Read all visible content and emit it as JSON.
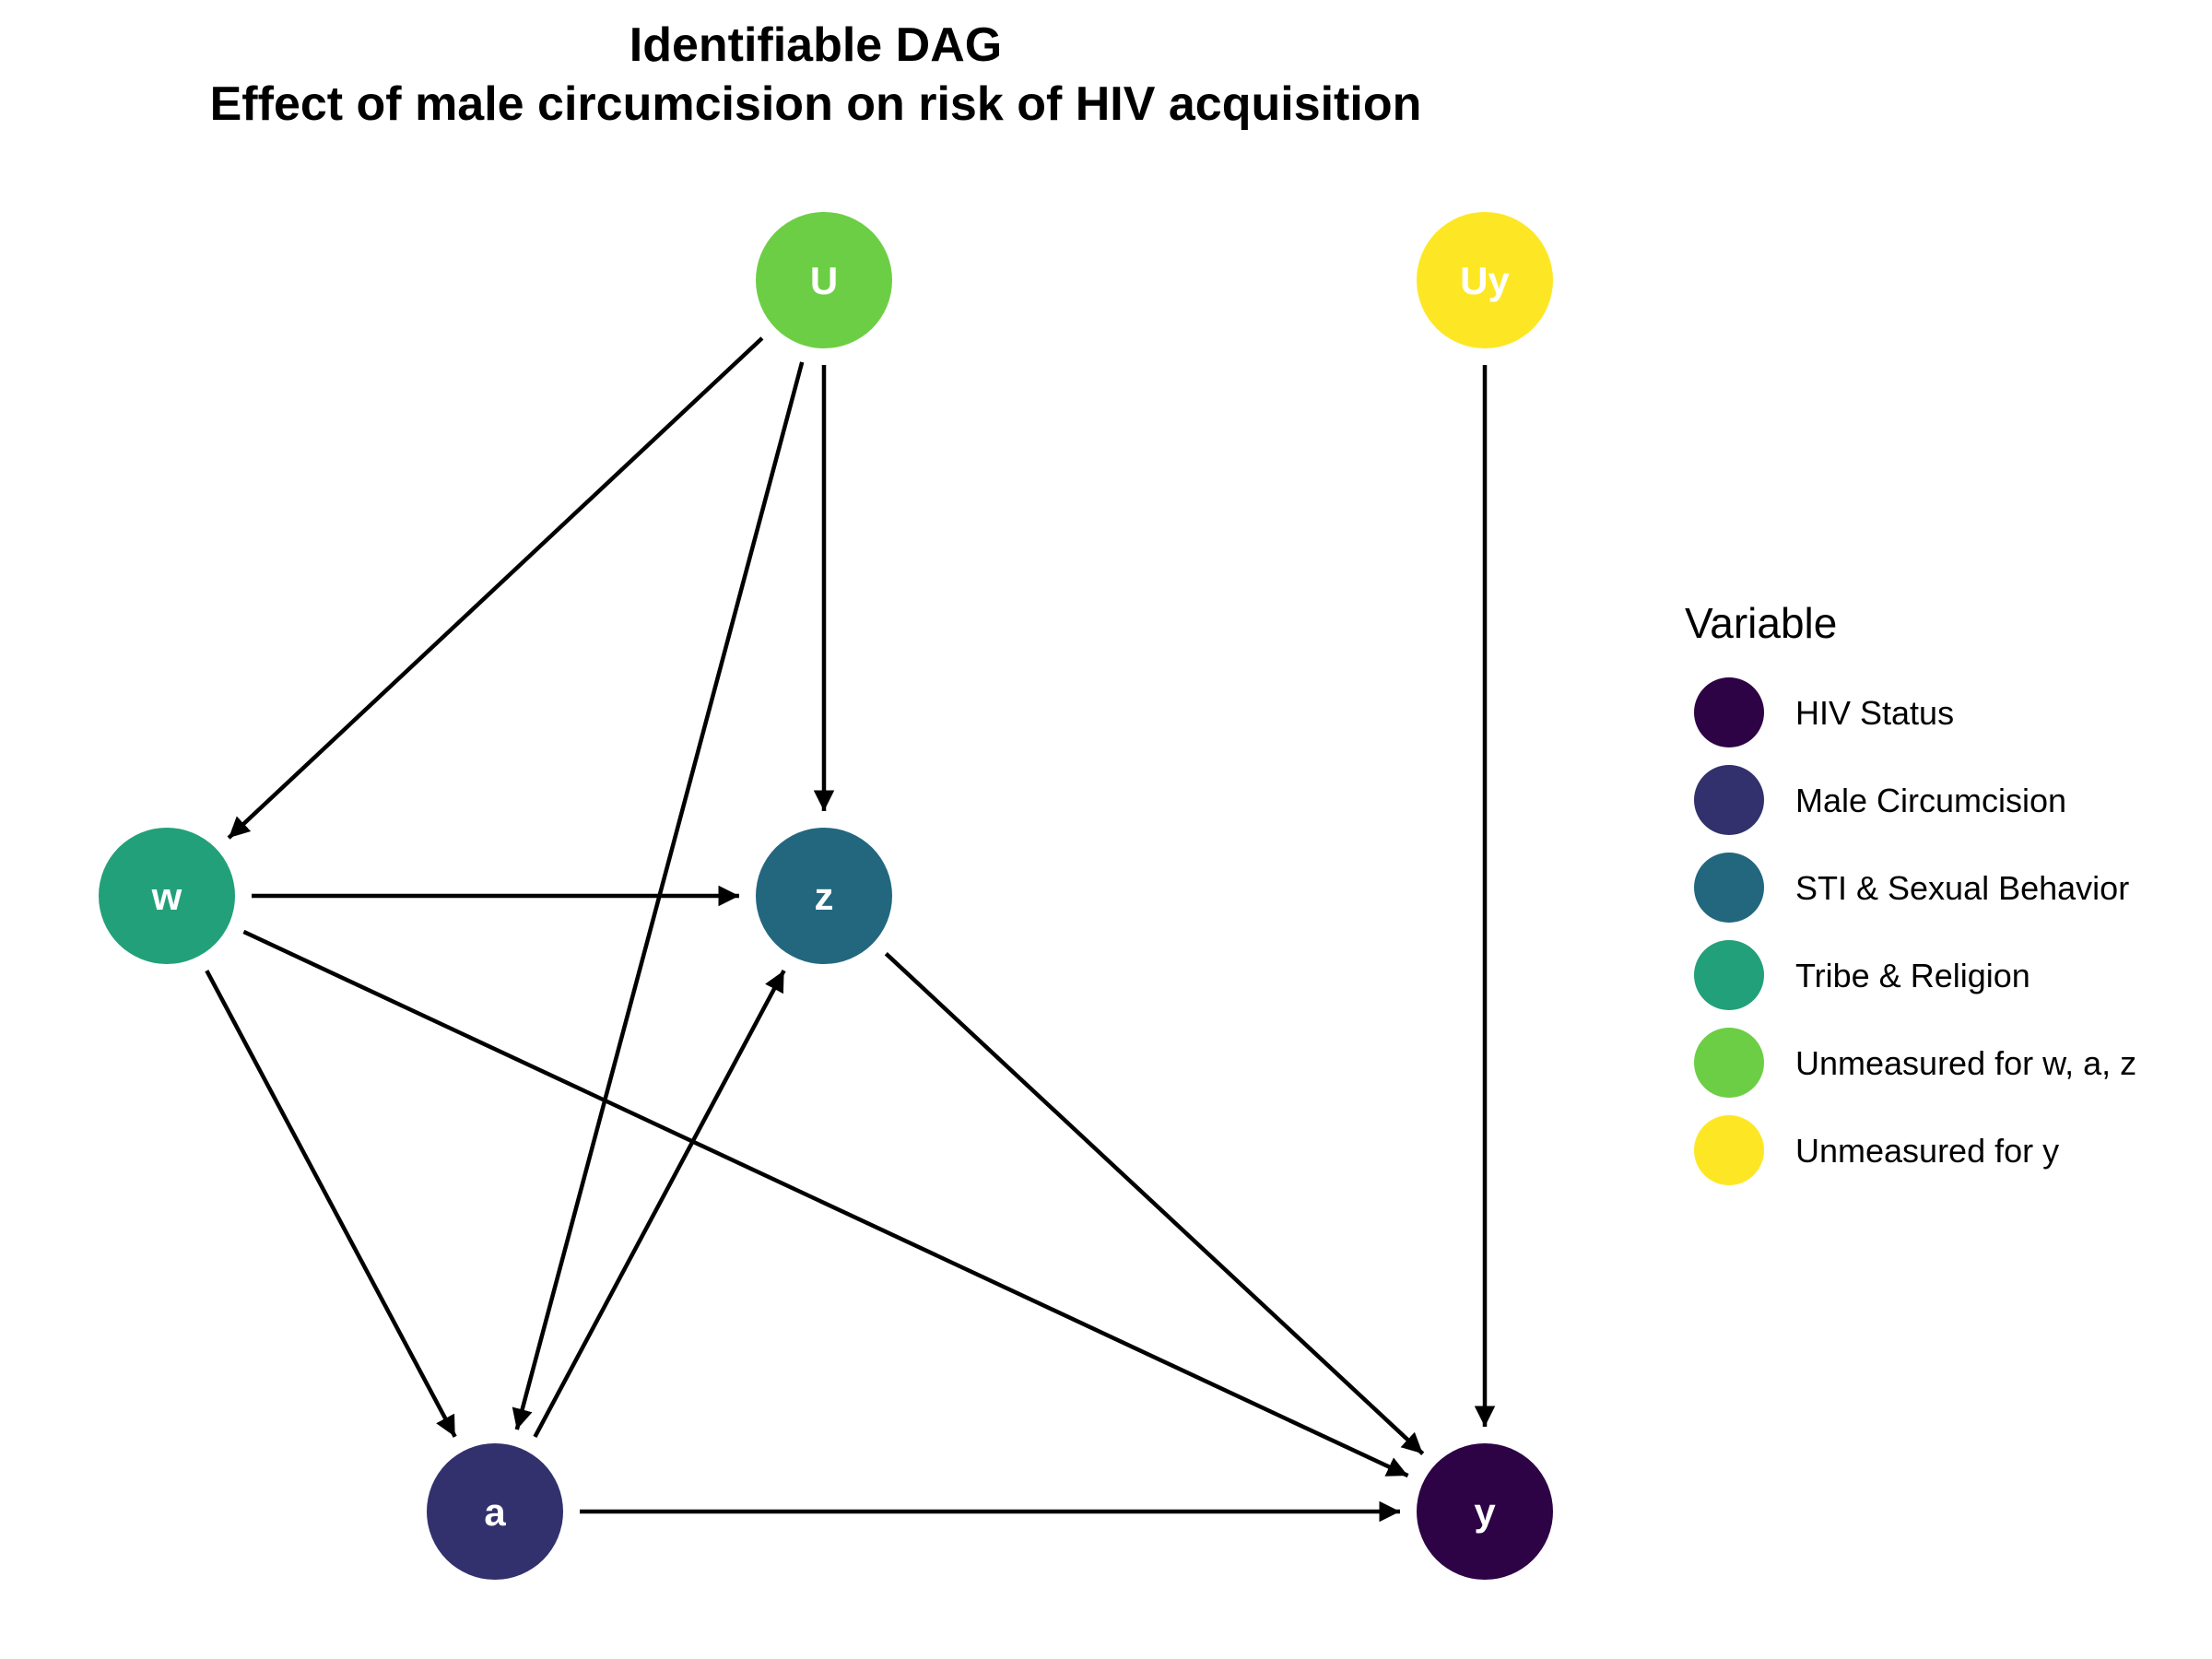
{
  "title": {
    "line1": "Identifiable DAG",
    "line2": "Effect of male circumcision on risk of HIV acquisition"
  },
  "nodes": [
    {
      "id": "U",
      "label": "U",
      "color": "#6cce45"
    },
    {
      "id": "Uy",
      "label": "Uy",
      "color": "#fde724"
    },
    {
      "id": "w",
      "label": "w",
      "color": "#22a07a"
    },
    {
      "id": "z",
      "label": "z",
      "color": "#23677f"
    },
    {
      "id": "a",
      "label": "a",
      "color": "#32316d"
    },
    {
      "id": "y",
      "label": "y",
      "color": "#2d0345"
    }
  ],
  "edges": [
    {
      "from": "U",
      "to": "w"
    },
    {
      "from": "U",
      "to": "z"
    },
    {
      "from": "U",
      "to": "a"
    },
    {
      "from": "Uy",
      "to": "y"
    },
    {
      "from": "w",
      "to": "z"
    },
    {
      "from": "w",
      "to": "a"
    },
    {
      "from": "w",
      "to": "y"
    },
    {
      "from": "a",
      "to": "z"
    },
    {
      "from": "a",
      "to": "y"
    },
    {
      "from": "z",
      "to": "y"
    }
  ],
  "legend": {
    "title": "Variable",
    "items": [
      {
        "label": "HIV Status",
        "color": "#2d0345"
      },
      {
        "label": "Male Circumcision",
        "color": "#32316d"
      },
      {
        "label": "STI & Sexual Behavior",
        "color": "#23677f"
      },
      {
        "label": "Tribe & Religion",
        "color": "#22a07a"
      },
      {
        "label": "Unmeasured for w, a, z",
        "color": "#6cce45"
      },
      {
        "label": "Unmeasured for y",
        "color": "#fde724"
      }
    ]
  }
}
